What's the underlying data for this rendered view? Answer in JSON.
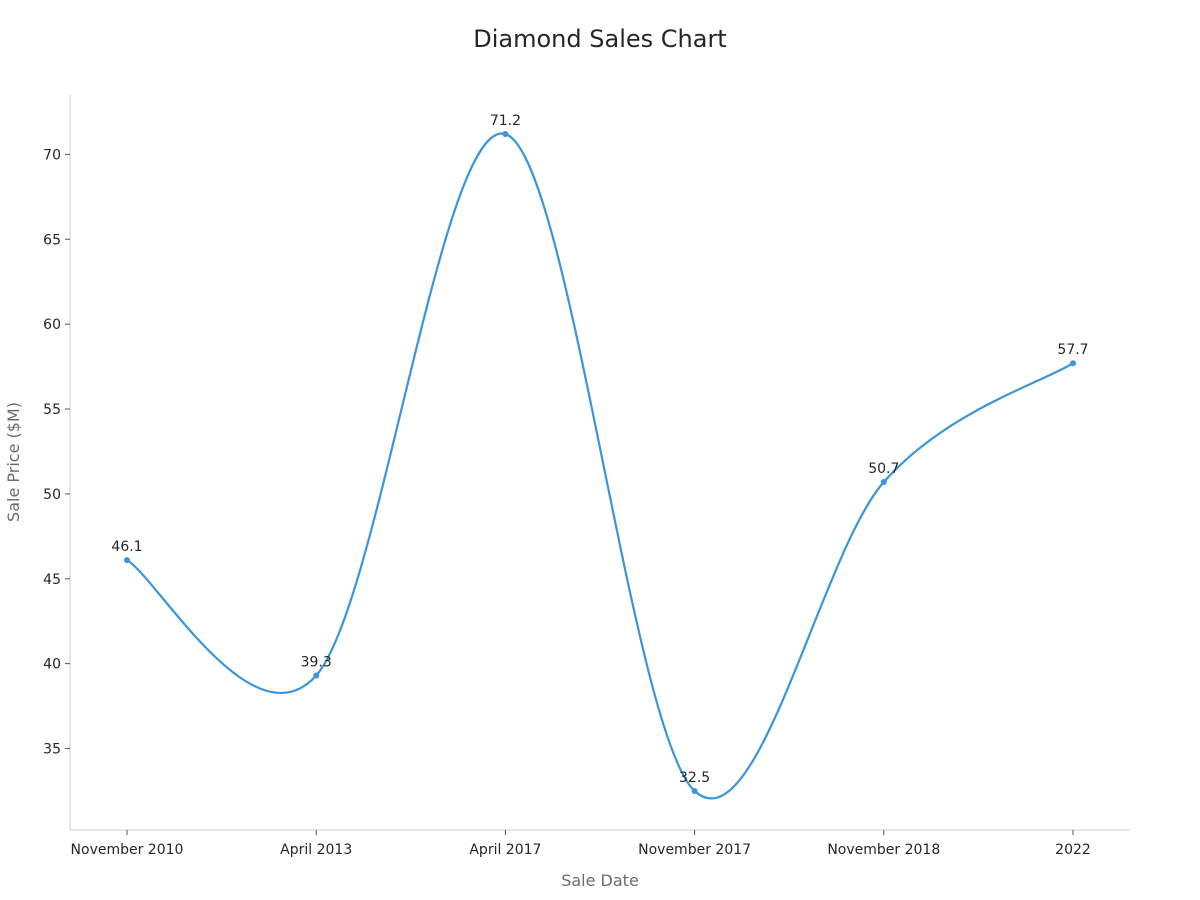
{
  "chart_data": {
    "type": "line",
    "title": "Diamond Sales Chart",
    "xlabel": "Sale Date",
    "ylabel": "Sale Price ($M)",
    "categories": [
      "November 2010",
      "April 2013",
      "April 2017",
      "November 2017",
      "November 2018",
      "2022"
    ],
    "series": [
      {
        "values": [
          46.1,
          39.3,
          71.2,
          32.5,
          50.7,
          57.7
        ]
      }
    ],
    "ylim": [
      30.2,
      73.5
    ],
    "yticks": [
      35,
      40,
      45,
      50,
      55,
      60,
      65,
      70
    ],
    "grid": false,
    "legend": "none",
    "line_color": "#3a95dc",
    "smooth": true
  }
}
